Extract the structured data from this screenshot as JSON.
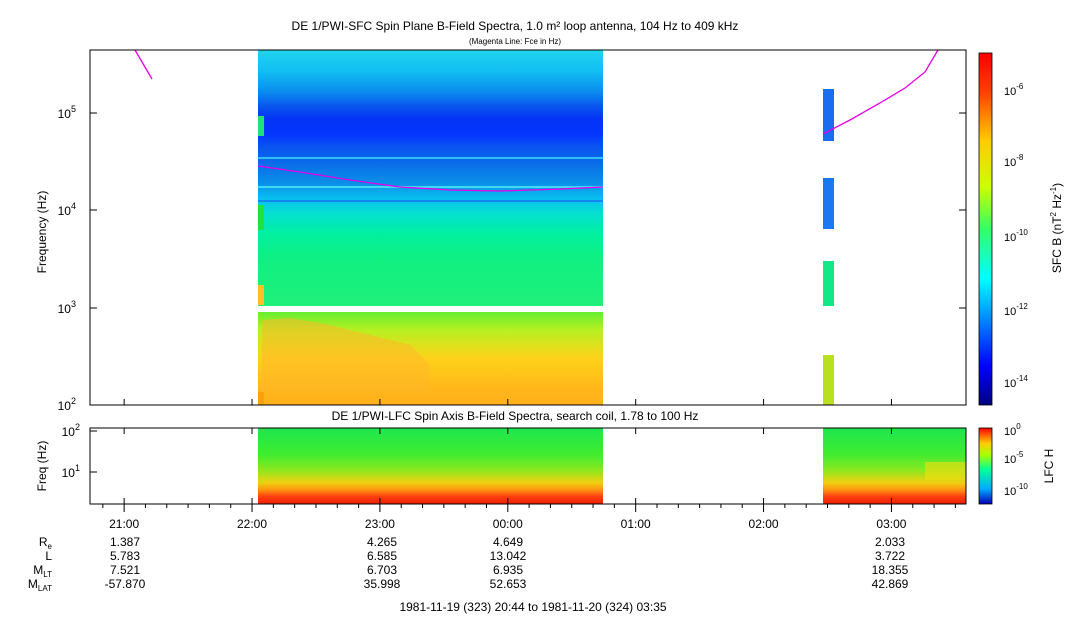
{
  "chart_data": [
    {
      "type": "heatmap",
      "title": "DE 1/PWI-SFC  Spin Plane B-Field Spectra, 1.0 m² loop antenna, 104 Hz to 409 kHz",
      "subtitle": "(Magenta Line: Fce in Hz)",
      "ylabel": "Frequency (Hz)",
      "yscale": "log",
      "ylim": [
        100,
        400000
      ],
      "ytick_labels": [
        "10^2",
        "10^3",
        "10^4",
        "10^5"
      ],
      "xlim_hours": [
        20.733,
        27.583
      ],
      "colorbar": {
        "label": "SFC B (nT^2 Hz^-1)",
        "scale": "log",
        "range": [
          1e-15,
          1e-05
        ],
        "tick_labels": [
          "10^-6",
          "10^-8",
          "10^-10",
          "10^-12",
          "10^-14"
        ]
      },
      "fce_line_color": "#e600e6"
    },
    {
      "type": "heatmap",
      "title": "DE 1/PWI-LFC  Spin Axis B-Field Spectra, search coil, 1.78 to 100 Hz",
      "ylabel": "Freq (Hz)",
      "yscale": "log",
      "ylim": [
        1.78,
        100
      ],
      "ytick_labels": [
        "10^2",
        "10^1"
      ],
      "colorbar": {
        "label": "LFC H",
        "scale": "log",
        "range": [
          1e-12,
          1
        ],
        "tick_labels": [
          "10^0",
          "10^-5",
          "10^-10"
        ]
      }
    }
  ],
  "time_axis": {
    "tick_labels": [
      "21:00",
      "22:00",
      "23:00",
      "00:00",
      "01:00",
      "02:00",
      "03:00"
    ],
    "range_text": "1981-11-19 (323) 20:44 to 1981-11-20 (324) 03:35"
  },
  "ephemeris": {
    "rows": [
      {
        "label": "R",
        "sub": "e",
        "values": [
          "1.387",
          "4.265",
          "4.649",
          "2.033"
        ]
      },
      {
        "label": "L",
        "sub": "",
        "values": [
          "5.783",
          "6.585",
          "13.042",
          "3.722"
        ]
      },
      {
        "label": "M",
        "sub": "LT",
        "values": [
          "7.521",
          "6.703",
          "6.935",
          "18.355"
        ]
      },
      {
        "label": "M",
        "sub": "LAT",
        "values": [
          "-57.870",
          "35.998",
          "52.653",
          "42.869"
        ]
      }
    ]
  }
}
